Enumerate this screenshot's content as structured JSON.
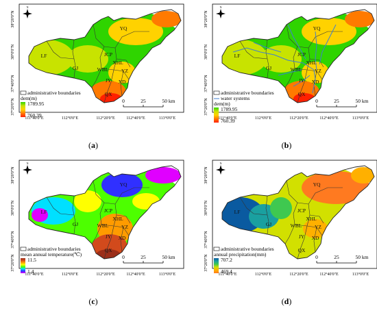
{
  "panels": [
    {
      "id": "a",
      "caption": "a",
      "legend": {
        "boundary_label": "administrative boundaries",
        "water_label": "",
        "variable_label": "dem(m)",
        "max": "1789.95",
        "min": "760.39",
        "colors": [
          "#2fd400",
          "#c8e300",
          "#ffd200",
          "#ff7a00",
          "#ff2000"
        ]
      },
      "regions": [
        "YQ",
        "LF",
        "GJ",
        "JCP",
        "XHL",
        "WBL",
        "YZ",
        "JY",
        "XD",
        "QX"
      ],
      "scale_bar": {
        "labels": [
          "0",
          "25",
          "50 km"
        ]
      },
      "lat_labels": [
        "38°20'0\"N",
        "38°0'0\"N",
        "37°40'0\"N",
        "37°20'0\"N"
      ],
      "lon_labels": [
        "111°40'0\"E",
        "112°0'0\"E",
        "112°20'0\"E",
        "112°40'0\"E",
        "113°0'0\"E"
      ],
      "north_arrow": "N"
    },
    {
      "id": "b",
      "caption": "b",
      "legend": {
        "boundary_label": "administrative boundaries",
        "water_label": "water systems",
        "variable_label": "dem(m)",
        "max": "1789.95",
        "min": "760.39",
        "colors": [
          "#2fd400",
          "#c8e300",
          "#ffd200",
          "#ff7a00",
          "#ff2000"
        ]
      },
      "regions": [
        "YQ",
        "LF",
        "GJ",
        "JCP",
        "XHL",
        "WBL",
        "YZ",
        "JY",
        "XD",
        "QX"
      ],
      "scale_bar": {
        "labels": [
          "0",
          "25",
          "50 km"
        ]
      },
      "lat_labels": [
        "38°20'0\"N",
        "38°0'0\"N",
        "37°40'0\"N",
        "37°20'0\"N"
      ],
      "lon_labels": [
        "111°40'0\"E",
        "112°0'0\"E",
        "112°20'0\"E",
        "112°40'0\"E",
        "113°0'0\"E"
      ],
      "north_arrow": "N"
    },
    {
      "id": "c",
      "caption": "c",
      "legend": {
        "boundary_label": "administrative boundaries",
        "water_label": "",
        "variable_label": "mean annual temperature(℃)",
        "max": "11.5",
        "min": "1.4",
        "colors": [
          "#9b2e1a",
          "#d24a1c",
          "#ff9b00",
          "#ffff00",
          "#4dff00",
          "#00e0ff",
          "#3030ff",
          "#e000ff"
        ]
      },
      "regions": [
        "YQ",
        "LF",
        "GJ",
        "JCP",
        "XHL",
        "WBL",
        "YZ",
        "JY",
        "XD",
        "QX"
      ],
      "scale_bar": {
        "labels": [
          "0",
          "25",
          "50 km"
        ]
      },
      "lat_labels": [
        "38°20'0\"N",
        "38°0'0\"N",
        "37°40'0\"N",
        "37°20'0\"N"
      ],
      "lon_labels": [
        "111°40'0\"E",
        "112°0'0\"E",
        "112°20'0\"E",
        "112°40'0\"E",
        "113°0'0\"E"
      ],
      "north_arrow": "N"
    },
    {
      "id": "d",
      "caption": "d",
      "legend": {
        "boundary_label": "administrative boundaries",
        "water_label": "",
        "variable_label": "annual precipitation(mm)",
        "max": "707.2",
        "min": "469.4",
        "colors": [
          "#0a5aa0",
          "#1aa0a0",
          "#3fc850",
          "#d2e000",
          "#ffb000",
          "#ff7a20"
        ]
      },
      "regions": [
        "YQ",
        "LF",
        "GJ",
        "JCP",
        "XHL",
        "WBL",
        "YZ",
        "JY",
        "XD",
        "QX"
      ],
      "scale_bar": {
        "labels": [
          "0",
          "25",
          "50 km"
        ]
      },
      "lat_labels": [
        "38°20'0\"N",
        "38°0'0\"N",
        "37°40'0\"N",
        "37°20'0\"N"
      ],
      "lon_labels": [
        "111°40'0\"E",
        "112°0'0\"E",
        "112°20'0\"E",
        "112°40'0\"E",
        "113°0'0\"E"
      ],
      "north_arrow": "N"
    }
  ]
}
